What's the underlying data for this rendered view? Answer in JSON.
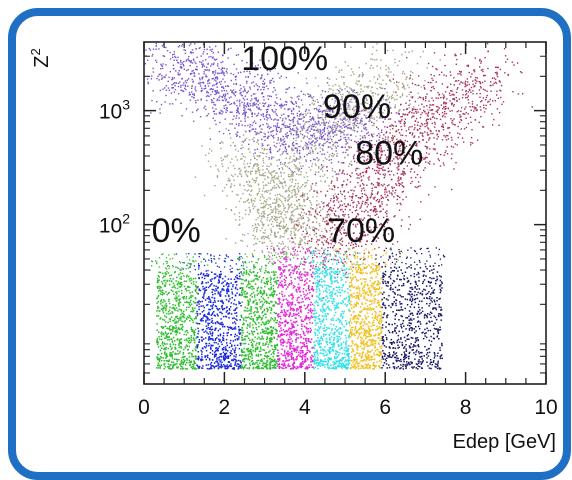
{
  "chart_data": {
    "type": "scatter",
    "title": "",
    "xlabel": "Edep [GeV]",
    "ylabel": "Z",
    "ylabel_superscript": "2",
    "x_log": false,
    "y_log": true,
    "xlim": [
      0,
      10
    ],
    "ylim": [
      4,
      4000
    ],
    "x_ticks": [
      "0",
      "2",
      "4",
      "6",
      "8",
      "10"
    ],
    "y_ticks": [
      {
        "base": "10",
        "exp": "3",
        "value": 1000
      },
      {
        "base": "10",
        "exp": "2",
        "value": 100
      }
    ],
    "grid": false,
    "annotations": [
      {
        "text": "100%",
        "x": 3.5,
        "y": 2900
      },
      {
        "text": "90%",
        "x": 5.3,
        "y": 1100
      },
      {
        "text": "80%",
        "x": 6.1,
        "y": 430
      },
      {
        "text": "70%",
        "x": 5.4,
        "y": 90
      },
      {
        "text": "0%",
        "x": 0.8,
        "y": 90
      }
    ],
    "series": [
      {
        "color": "#7a55d0",
        "kind": "band",
        "points": [
          [
            0.4,
            2700
          ],
          [
            2.2,
            1500
          ],
          [
            3.8,
            600
          ],
          [
            5.5,
            900
          ]
        ]
      },
      {
        "color": "#a6a688",
        "kind": "band",
        "points": [
          [
            2.5,
            450
          ],
          [
            3.3,
            180
          ],
          [
            3.5,
            70
          ],
          [
            4.5,
            900
          ],
          [
            6.5,
            2100
          ]
        ]
      },
      {
        "color": "#a6345c",
        "kind": "band",
        "points": [
          [
            4.5,
            60
          ],
          [
            5.5,
            180
          ],
          [
            6.8,
            700
          ],
          [
            8.5,
            2200
          ]
        ]
      },
      {
        "color": "#2ebd2e",
        "kind": "block",
        "x": [
          0.3,
          1.3
        ],
        "y": [
          5.5,
          40
        ]
      },
      {
        "color": "#1a28d6",
        "kind": "block",
        "x": [
          1.3,
          2.4
        ],
        "y": [
          5.5,
          40
        ]
      },
      {
        "color": "#2ebd2e",
        "kind": "block",
        "x": [
          2.4,
          3.3
        ],
        "y": [
          5.5,
          40
        ]
      },
      {
        "color": "#e02ad8",
        "kind": "block",
        "x": [
          3.3,
          4.2
        ],
        "y": [
          5.5,
          45
        ]
      },
      {
        "color": "#30e0e8",
        "kind": "block",
        "x": [
          4.2,
          5.1
        ],
        "y": [
          5.5,
          45
        ]
      },
      {
        "color": "#f0c020",
        "kind": "block",
        "x": [
          5.1,
          5.9
        ],
        "y": [
          5.5,
          45
        ]
      },
      {
        "color": "#1a1a6a",
        "kind": "block",
        "x": [
          5.9,
          7.4
        ],
        "y": [
          5.5,
          45
        ]
      }
    ]
  }
}
